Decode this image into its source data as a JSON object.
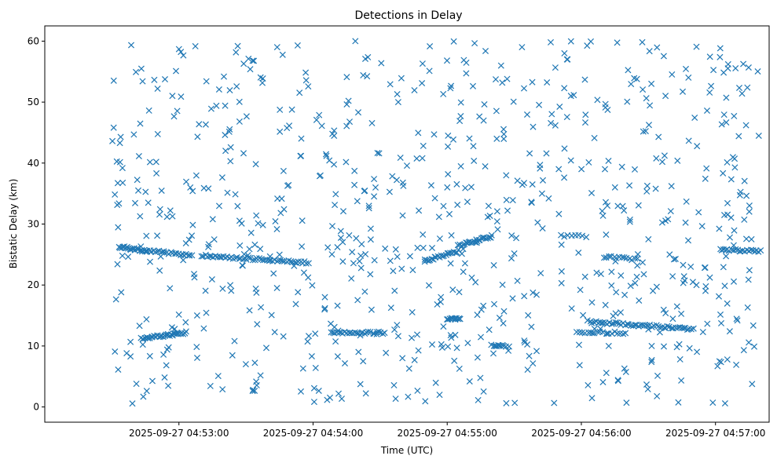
{
  "chart_data": {
    "type": "scatter",
    "title": "Detections in Delay",
    "xlabel": "Time (UTC)",
    "ylabel": "Bistatic Delay (km)",
    "marker": "x",
    "color": "#1f77b4",
    "grid": false,
    "legend": "none",
    "x_tick_labels": [
      "2025-09-27 04:53:00",
      "2025-09-27 04:54:00",
      "2025-09-27 04:55:00",
      "2025-09-27 04:56:00",
      "2025-09-27 04:57:00"
    ],
    "y_tick_labels": [
      "0",
      "10",
      "20",
      "30",
      "40",
      "50",
      "60"
    ],
    "xlim": [
      "2025-09-27 04:52:00",
      "2025-09-27 04:57:24"
    ],
    "ylim": [
      -2.5,
      62.5
    ],
    "noise": {
      "description": "uniform scatter of detections over whole window",
      "x_range": [
        "2025-09-27 04:52:30",
        "2025-09-27 04:57:20"
      ],
      "y_range": [
        0.5,
        60
      ],
      "count": 780
    },
    "tracks": [
      {
        "x": [
          "2025-09-27 04:52:33",
          "2025-09-27 04:52:46"
        ],
        "y": [
          26.3,
          25.5
        ],
        "count": 24
      },
      {
        "x": [
          "2025-09-27 04:52:46",
          "2025-09-27 04:53:06"
        ],
        "y": [
          25.6,
          24.9
        ],
        "count": 24
      },
      {
        "x": [
          "2025-09-27 04:53:10",
          "2025-09-27 04:53:58"
        ],
        "y": [
          24.8,
          23.7
        ],
        "count": 55
      },
      {
        "x": [
          "2025-09-27 04:52:43",
          "2025-09-27 04:53:03"
        ],
        "y": [
          11.2,
          12.2
        ],
        "count": 35
      },
      {
        "x": [
          "2025-09-27 04:54:08",
          "2025-09-27 04:54:32"
        ],
        "y": [
          12.2,
          12.2
        ],
        "count": 28
      },
      {
        "x": [
          "2025-09-27 04:54:50",
          "2025-09-27 04:55:05"
        ],
        "y": [
          24.0,
          25.6
        ],
        "count": 22
      },
      {
        "x": [
          "2025-09-27 04:55:05",
          "2025-09-27 04:55:20"
        ],
        "y": [
          26.5,
          28.0
        ],
        "count": 24
      },
      {
        "x": [
          "2025-09-27 04:55:00",
          "2025-09-27 04:55:06"
        ],
        "y": [
          14.5,
          14.5
        ],
        "count": 12
      },
      {
        "x": [
          "2025-09-27 04:55:20",
          "2025-09-27 04:55:26"
        ],
        "y": [
          10.0,
          10.0
        ],
        "count": 10
      },
      {
        "x": [
          "2025-09-27 04:55:51",
          "2025-09-27 04:56:02"
        ],
        "y": [
          28.0,
          28.0
        ],
        "count": 8
      },
      {
        "x": [
          "2025-09-27 04:56:10",
          "2025-09-27 04:56:25"
        ],
        "y": [
          24.6,
          24.2
        ],
        "count": 14
      },
      {
        "x": [
          "2025-09-27 04:56:03",
          "2025-09-27 04:56:50"
        ],
        "y": [
          14.0,
          12.8
        ],
        "count": 55
      },
      {
        "x": [
          "2025-09-27 04:55:58",
          "2025-09-27 04:56:20"
        ],
        "y": [
          12.3,
          12.1
        ],
        "count": 18
      },
      {
        "x": [
          "2025-09-27 04:57:02",
          "2025-09-27 04:57:20"
        ],
        "y": [
          25.8,
          25.6
        ],
        "count": 22
      }
    ]
  }
}
